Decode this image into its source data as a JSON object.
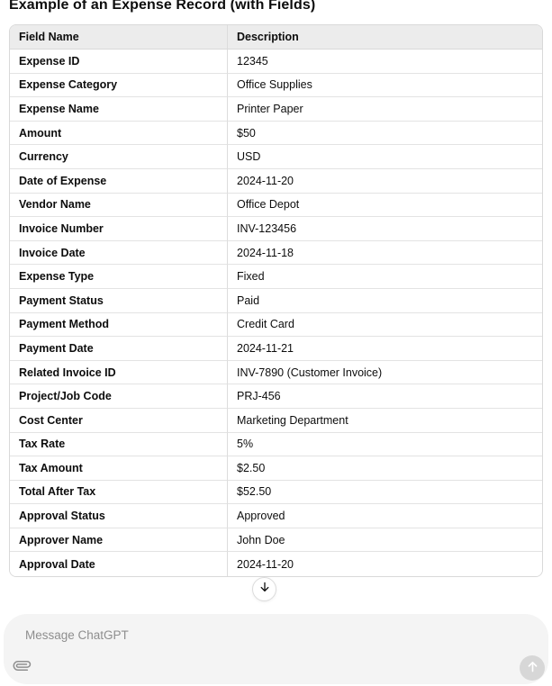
{
  "title": "Example of an Expense Record (with Fields)",
  "table": {
    "columns": [
      "Field Name",
      "Description"
    ],
    "rows": [
      [
        "Expense ID",
        "12345"
      ],
      [
        "Expense Category",
        "Office Supplies"
      ],
      [
        "Expense Name",
        "Printer Paper"
      ],
      [
        "Amount",
        "$50"
      ],
      [
        "Currency",
        "USD"
      ],
      [
        "Date of Expense",
        "2024-11-20"
      ],
      [
        "Vendor Name",
        "Office Depot"
      ],
      [
        "Invoice Number",
        "INV-123456"
      ],
      [
        "Invoice Date",
        "2024-11-18"
      ],
      [
        "Expense Type",
        "Fixed"
      ],
      [
        "Payment Status",
        "Paid"
      ],
      [
        "Payment Method",
        "Credit Card"
      ],
      [
        "Payment Date",
        "2024-11-21"
      ],
      [
        "Related Invoice ID",
        "INV-7890 (Customer Invoice)"
      ],
      [
        "Project/Job Code",
        "PRJ-456"
      ],
      [
        "Cost Center",
        "Marketing Department"
      ],
      [
        "Tax Rate",
        "5%"
      ],
      [
        "Tax Amount",
        "$2.50"
      ],
      [
        "Total After Tax",
        "$52.50"
      ],
      [
        "Approval Status",
        "Approved"
      ],
      [
        "Approver Name",
        "John Doe"
      ],
      [
        "Approval Date",
        "2024-11-20"
      ]
    ]
  },
  "scroll_button": {
    "icon": "arrow-down"
  },
  "composer": {
    "placeholder": "Message ChatGPT",
    "attach_icon": "paperclip",
    "send_icon": "arrow-up"
  },
  "colors": {
    "page_bg": "#ffffff",
    "text": "#0d0d0d",
    "table_header_bg": "#ececec",
    "table_border": "#d9d9d9",
    "row_border": "#e3e3e3",
    "composer_bg": "#f4f4f4",
    "placeholder_text": "#8e8e8e",
    "send_button_bg": "#d7d7d7",
    "send_arrow": "#ffffff",
    "icon_gray": "#8f8f8f"
  }
}
